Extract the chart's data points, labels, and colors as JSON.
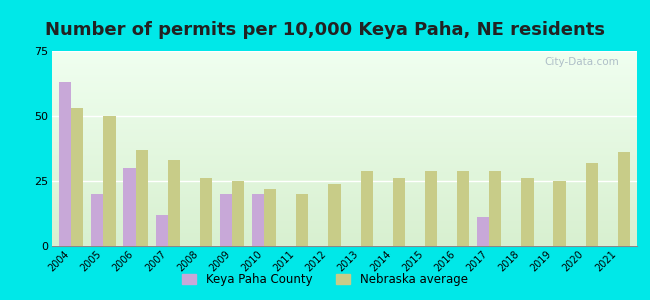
{
  "title": "Number of permits per 10,000 Keya Paha, NE residents",
  "years": [
    2004,
    2005,
    2006,
    2007,
    2008,
    2009,
    2010,
    2011,
    2012,
    2013,
    2014,
    2015,
    2016,
    2017,
    2018,
    2019,
    2020,
    2021
  ],
  "keya_paha": [
    63,
    20,
    30,
    12,
    0,
    20,
    20,
    0,
    0,
    0,
    0,
    0,
    0,
    11,
    0,
    0,
    0,
    0
  ],
  "nebraska_avg": [
    53,
    50,
    37,
    33,
    26,
    25,
    22,
    20,
    24,
    29,
    26,
    29,
    29,
    29,
    26,
    25,
    32,
    36
  ],
  "keya_paha_color": "#c8a8d8",
  "nebraska_avg_color": "#c8cc88",
  "outer_bg_color": "#00e8e8",
  "plot_bg_top": "#f0fff0",
  "plot_bg_bottom": "#d8f0d0",
  "ylim": [
    0,
    75
  ],
  "yticks": [
    0,
    25,
    50,
    75
  ],
  "bar_width": 0.38,
  "legend_keya_paha": "Keya Paha County",
  "legend_nebraska": "Nebraska average",
  "watermark": "City-Data.com",
  "title_fontsize": 13
}
